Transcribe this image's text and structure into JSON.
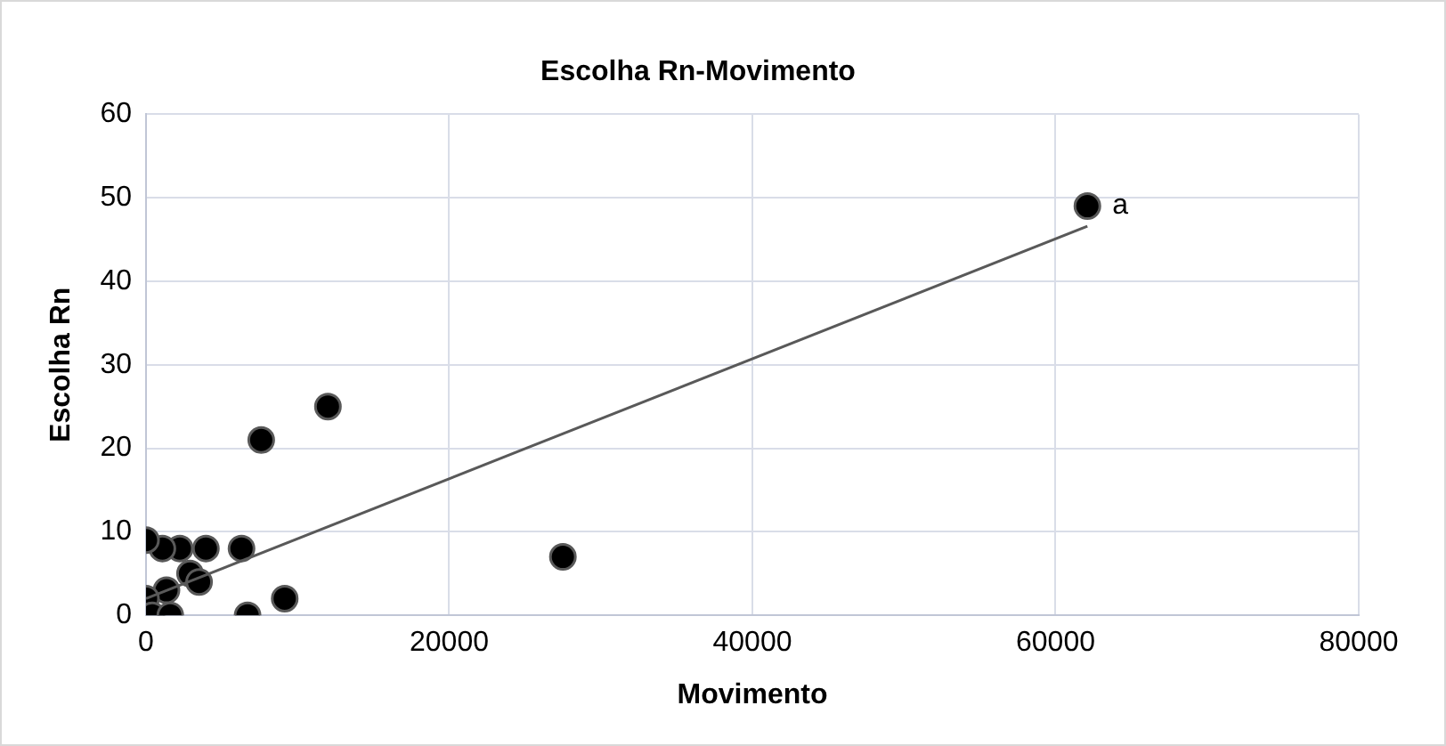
{
  "chart_data": {
    "type": "scatter",
    "title": "Escolha Rn-Movimento",
    "xlabel": "Movimento",
    "ylabel": "Escolha Rn",
    "xlim": [
      0,
      80000
    ],
    "xticks": [
      0,
      20000,
      40000,
      60000,
      80000
    ],
    "ylim": [
      0,
      60
    ],
    "yticks": [
      0,
      10,
      20,
      30,
      40,
      50,
      60
    ],
    "grid": true,
    "legend": false,
    "marker": "circle",
    "series": [
      {
        "color": "#000000",
        "x": [
          62100,
          12000,
          7600,
          27500,
          6300,
          3950,
          2230,
          1080,
          0,
          9150,
          6700,
          2900,
          3500,
          1350,
          0,
          400,
          1600
        ],
        "values": [
          49,
          25,
          21,
          7,
          8,
          8,
          8,
          8,
          9,
          2,
          0,
          5,
          4,
          3,
          2,
          0,
          0
        ]
      },
      {
        "type": "line",
        "marker": "none",
        "color": "#595959",
        "x": [
          0,
          62100
        ],
        "values": [
          2,
          46.6
        ]
      }
    ],
    "annotations": [
      {
        "text": "a",
        "x": 62100,
        "y": 49
      }
    ]
  }
}
